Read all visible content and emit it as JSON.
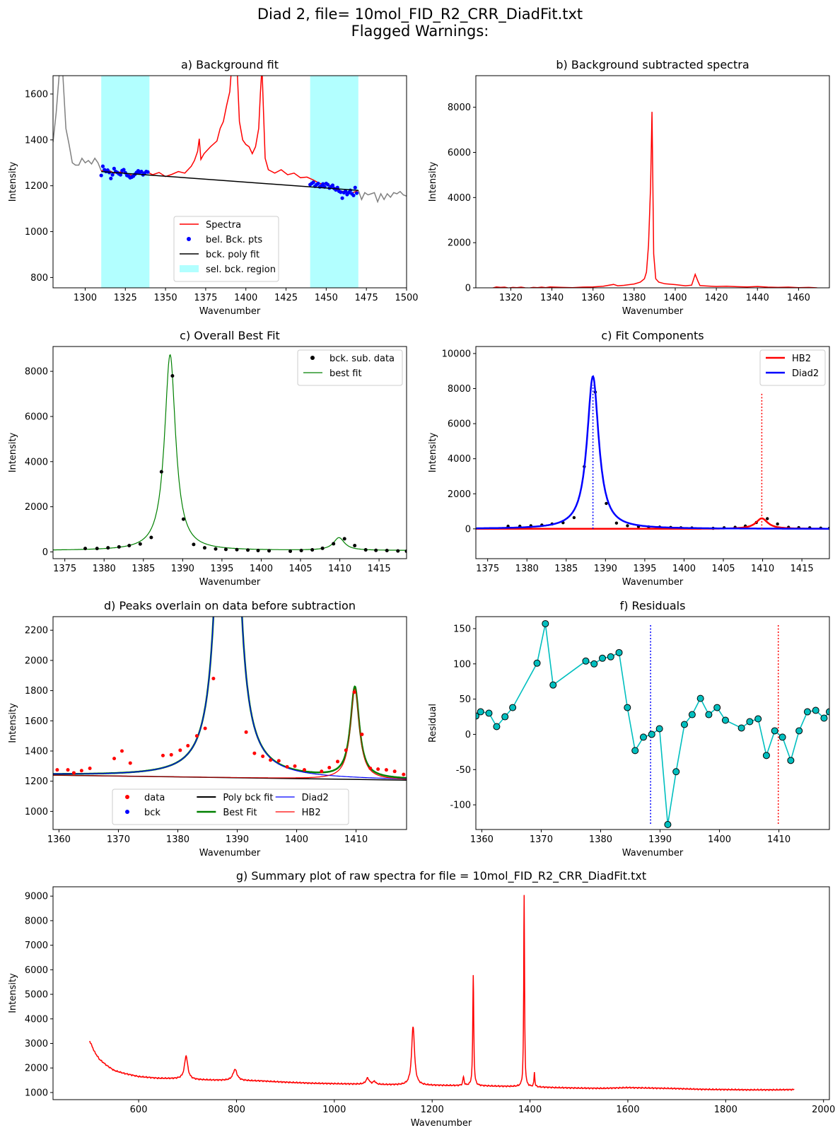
{
  "suptitle": {
    "line1": "Diad 2, file= 10mol_FID_R2_CRR_DiadFit.txt",
    "line2": "Flagged Warnings:"
  },
  "colors": {
    "spectra": "#ff0000",
    "bck_pts": "#0000ff",
    "poly": "#000000",
    "bck_region": "#00ffff",
    "best_fit_c": "#008000",
    "hb2": "#ff0000",
    "diad2": "#0000ff",
    "best_fit_d": "#008000",
    "residual_line": "#00bfbf",
    "residual_marker": "#00bfbf",
    "raw_grey": "#808080"
  },
  "chart_data": [
    {
      "id": "a",
      "type": "line",
      "title": "a) Background fit",
      "xlabel": "Wavenumber",
      "ylabel": "Intensity",
      "xlim": [
        1280,
        1500
      ],
      "ylim": [
        755,
        1680
      ],
      "xticks": [
        1300,
        1325,
        1350,
        1375,
        1400,
        1425,
        1450,
        1475,
        1500
      ],
      "yticks": [
        800,
        1000,
        1200,
        1400,
        1600
      ],
      "selected_background_regions": [
        [
          1310,
          1340
        ],
        [
          1440,
          1470
        ]
      ],
      "raw_spectrum": {
        "x": [
          1280,
          1282,
          1284,
          1286,
          1288,
          1290,
          1292,
          1294,
          1296,
          1298,
          1300,
          1302,
          1304,
          1306,
          1308,
          1310,
          1470,
          1472,
          1474,
          1476,
          1478,
          1480,
          1482,
          1484,
          1486,
          1488,
          1490,
          1492,
          1494,
          1496,
          1498,
          1500
        ],
        "y": [
          1390,
          1520,
          1700,
          1700,
          1450,
          1380,
          1300,
          1290,
          1290,
          1320,
          1300,
          1310,
          1295,
          1320,
          1300,
          1265,
          1180,
          1140,
          1170,
          1160,
          1165,
          1170,
          1130,
          1165,
          1140,
          1165,
          1150,
          1170,
          1165,
          1175,
          1160,
          1155
        ]
      },
      "spectra": {
        "x": [
          1310,
          1314,
          1318,
          1322,
          1326,
          1330,
          1334,
          1338,
          1342,
          1346,
          1350,
          1354,
          1358,
          1362,
          1366,
          1368,
          1370,
          1371,
          1372,
          1374,
          1378,
          1382,
          1384,
          1386,
          1388,
          1390,
          1392,
          1394,
          1396,
          1398,
          1400,
          1402,
          1404,
          1406,
          1408,
          1409,
          1410,
          1411,
          1412,
          1414,
          1418,
          1422,
          1426,
          1430,
          1434,
          1438,
          1442,
          1446,
          1450,
          1454,
          1458,
          1462,
          1466,
          1470
        ],
        "y": [
          1265,
          1270,
          1255,
          1260,
          1250,
          1245,
          1255,
          1262,
          1248,
          1258,
          1240,
          1250,
          1262,
          1255,
          1285,
          1310,
          1350,
          1405,
          1315,
          1340,
          1370,
          1395,
          1450,
          1480,
          1550,
          1610,
          1800,
          1800,
          1480,
          1400,
          1380,
          1370,
          1340,
          1370,
          1450,
          1600,
          1720,
          1520,
          1320,
          1270,
          1255,
          1270,
          1248,
          1255,
          1235,
          1238,
          1225,
          1210,
          1205,
          1198,
          1180,
          1172,
          1168,
          1180
        ]
      },
      "bck_points": {
        "x": [
          1310,
          1311,
          1312,
          1313,
          1314,
          1315,
          1316,
          1317,
          1318,
          1319,
          1320,
          1321,
          1322,
          1323,
          1324,
          1325,
          1326,
          1327,
          1328,
          1329,
          1330,
          1331,
          1332,
          1333,
          1334,
          1335,
          1336,
          1337,
          1338,
          1339,
          1440,
          1441,
          1442,
          1443,
          1444,
          1445,
          1446,
          1447,
          1448,
          1449,
          1450,
          1451,
          1452,
          1453,
          1454,
          1455,
          1456,
          1457,
          1458,
          1459,
          1460,
          1461,
          1462,
          1463,
          1464,
          1465,
          1466,
          1467,
          1468,
          1469
        ],
        "y": [
          1245,
          1285,
          1270,
          1262,
          1268,
          1258,
          1232,
          1248,
          1275,
          1262,
          1258,
          1252,
          1248,
          1266,
          1270,
          1257,
          1245,
          1242,
          1235,
          1238,
          1242,
          1250,
          1258,
          1265,
          1258,
          1262,
          1248,
          1255,
          1262,
          1260,
          1205,
          1210,
          1215,
          1198,
          1205,
          1210,
          1195,
          1200,
          1208,
          1195,
          1210,
          1205,
          1190,
          1196,
          1202,
          1188,
          1182,
          1192,
          1176,
          1172,
          1146,
          1170,
          1176,
          1162,
          1170,
          1180,
          1165,
          1158,
          1192,
          1168
        ]
      },
      "poly_fit": {
        "x": [
          1310,
          1470
        ],
        "y": [
          1262,
          1180
        ]
      },
      "legend": {
        "location": "lower center",
        "entries": [
          "Spectra",
          "bel. Bck. pts",
          "bck. poly fit",
          "sel. bck. region"
        ]
      }
    },
    {
      "id": "b",
      "type": "line",
      "title": "b) Background subtracted spectra",
      "xlabel": "Wavenumber",
      "ylabel": "Intensity",
      "xlim": [
        1303,
        1475
      ],
      "ylim": [
        0,
        9400
      ],
      "xticks": [
        1320,
        1340,
        1360,
        1380,
        1400,
        1420,
        1440,
        1460
      ],
      "yticks": [
        0,
        2000,
        4000,
        6000,
        8000
      ],
      "series": [
        {
          "x": [
            1311,
            1313,
            1315,
            1317,
            1319,
            1321,
            1323,
            1325,
            1327,
            1329,
            1331,
            1333,
            1335,
            1337,
            1339,
            1345,
            1350,
            1355,
            1360,
            1365,
            1370,
            1372,
            1375,
            1380,
            1383,
            1385,
            1386,
            1387,
            1388,
            1388.7,
            1389.5,
            1390.5,
            1392,
            1395,
            1400,
            1405,
            1408,
            1409.7,
            1411,
            1412,
            1415,
            1420,
            1425,
            1430,
            1435,
            1440,
            1445,
            1450,
            1455,
            1460,
            1465,
            1469
          ],
          "y": [
            -10,
            40,
            20,
            30,
            -10,
            20,
            10,
            30,
            0,
            -10,
            20,
            10,
            30,
            10,
            40,
            20,
            10,
            30,
            40,
            70,
            150,
            90,
            110,
            170,
            250,
            400,
            700,
            1900,
            4500,
            7800,
            1500,
            400,
            250,
            180,
            140,
            90,
            120,
            600,
            300,
            100,
            80,
            60,
            70,
            50,
            40,
            60,
            30,
            20,
            30,
            10,
            20,
            0
          ]
        }
      ]
    },
    {
      "id": "c1",
      "type": "line",
      "title": "c) Overall Best Fit",
      "xlabel": "Wavenumber",
      "ylabel": "Intensity",
      "xlim": [
        1373.5,
        1418.5
      ],
      "ylim": [
        -300,
        9100
      ],
      "xticks": [
        1375,
        1380,
        1385,
        1390,
        1395,
        1400,
        1405,
        1410,
        1415
      ],
      "yticks": [
        0,
        2000,
        4000,
        6000,
        8000
      ],
      "bck_sub_data": {
        "x": [
          1377.6,
          1379.1,
          1380.5,
          1381.9,
          1383.2,
          1384.6,
          1386.0,
          1387.3,
          1388.7,
          1390.1,
          1391.4,
          1392.8,
          1394.2,
          1395.5,
          1396.9,
          1398.3,
          1399.6,
          1401.0,
          1403.7,
          1405.1,
          1406.5,
          1407.8,
          1409.2,
          1410.6,
          1411.9,
          1413.3,
          1414.6,
          1416.0,
          1417.4,
          1418.5
        ],
        "y": [
          150,
          150,
          180,
          220,
          280,
          350,
          640,
          3550,
          7800,
          1450,
          330,
          180,
          130,
          110,
          100,
          80,
          60,
          50,
          30,
          60,
          90,
          160,
          360,
          580,
          280,
          90,
          70,
          60,
          40,
          30
        ]
      },
      "best_fit_peaks": [
        {
          "center": 1388.4,
          "amplitude": 8680,
          "hwhm": 0.85
        },
        {
          "center": 1409.9,
          "amplitude": 560,
          "hwhm": 0.85
        }
      ],
      "best_fit_baseline": 60,
      "legend": {
        "location": "top-right",
        "entries": [
          "bck. sub. data",
          "best fit"
        ]
      }
    },
    {
      "id": "c2",
      "type": "line",
      "title": "c) Fit Components",
      "xlabel": "Wavenumber",
      "ylabel": "Intensity",
      "xlim": [
        1373.5,
        1418.5
      ],
      "ylim": [
        -1700,
        10400
      ],
      "xticks": [
        1375,
        1380,
        1385,
        1390,
        1395,
        1400,
        1405,
        1410,
        1415
      ],
      "yticks": [
        0,
        2000,
        4000,
        6000,
        8000,
        10000
      ],
      "components": [
        {
          "name": "HB2",
          "center": 1409.9,
          "amplitude": 600,
          "hwhm": 0.9
        },
        {
          "name": "Diad2",
          "center": 1388.4,
          "amplitude": 8700,
          "hwhm": 0.9
        }
      ],
      "peak_markers": [
        {
          "x": 1388.4,
          "y0": 0,
          "y1": 8200,
          "color": "blue"
        },
        {
          "x": 1409.9,
          "y0": 0,
          "y1": 7800,
          "color": "red"
        }
      ],
      "legend": {
        "location": "top-right",
        "entries": [
          "HB2",
          "Diad2"
        ]
      }
    },
    {
      "id": "d",
      "type": "line",
      "title": "d) Peaks overlain on data before subtraction",
      "xlabel": "Wavenumber",
      "ylabel": "Intensity",
      "xlim": [
        1359,
        1418.5
      ],
      "ylim": [
        880,
        2290
      ],
      "xticks": [
        1360,
        1370,
        1380,
        1390,
        1400,
        1410
      ],
      "yticks": [
        1000,
        1200,
        1400,
        1600,
        1800,
        2000,
        2200
      ],
      "data": {
        "x": [
          1359.7,
          1361.5,
          1362.5,
          1363.8,
          1365.2,
          1369.3,
          1370.6,
          1372.0,
          1377.5,
          1378.9,
          1380.4,
          1381.7,
          1383.2,
          1384.6,
          1386.0,
          1391.5,
          1392.9,
          1394.3,
          1395.6,
          1397.0,
          1398.4,
          1399.7,
          1401.3,
          1404.2,
          1405.5,
          1406.9,
          1408.3,
          1409.7,
          1411.0,
          1412.4,
          1413.7,
          1415.1,
          1416.5,
          1418.0
        ],
        "y": [
          1275,
          1275,
          1255,
          1270,
          1285,
          1350,
          1400,
          1320,
          1370,
          1375,
          1405,
          1435,
          1500,
          1550,
          1880,
          1525,
          1385,
          1365,
          1340,
          1335,
          1295,
          1300,
          1275,
          1265,
          1290,
          1330,
          1405,
          1790,
          1510,
          1285,
          1280,
          1275,
          1265,
          1245
        ]
      },
      "poly_bck": {
        "x": [
          1359,
          1418.5
        ],
        "y": [
          1240,
          1207
        ]
      },
      "best_fit": [
        {
          "name": "Diad2",
          "center": 1388.4,
          "amplitude": 8700,
          "hwhm": 0.9
        },
        {
          "name": "HB2",
          "center": 1409.8,
          "amplitude": 600,
          "hwhm": 0.9
        }
      ],
      "legend": {
        "location": "lower center",
        "entries": [
          "data",
          "bck",
          "Poly bck fit",
          "Best Fit",
          "Diad2",
          "HB2"
        ]
      }
    },
    {
      "id": "f",
      "type": "line",
      "title": "f) Residuals",
      "xlabel": "Wavenumber",
      "ylabel": "Residual",
      "xlim": [
        1359,
        1418.5
      ],
      "ylim": [
        -135,
        167
      ],
      "xticks": [
        1360,
        1370,
        1380,
        1390,
        1400,
        1410
      ],
      "yticks": [
        -100,
        -50,
        0,
        50,
        100,
        150
      ],
      "residuals": {
        "x": [
          1359.0,
          1359.8,
          1361.2,
          1362.5,
          1363.9,
          1365.2,
          1369.3,
          1370.7,
          1372.0,
          1377.5,
          1378.9,
          1380.3,
          1381.7,
          1383.1,
          1384.5,
          1385.8,
          1387.2,
          1388.6,
          1389.9,
          1391.3,
          1392.7,
          1394.1,
          1395.4,
          1396.8,
          1398.2,
          1399.6,
          1401.0,
          1403.7,
          1405.1,
          1406.5,
          1407.9,
          1409.3,
          1410.6,
          1412.0,
          1413.4,
          1414.8,
          1416.2,
          1417.6,
          1418.5
        ],
        "y": [
          26,
          32,
          30,
          11,
          25,
          38,
          101,
          157,
          70,
          104,
          100,
          108,
          110,
          116,
          38,
          -23,
          -4,
          0,
          8,
          -128,
          -53,
          14,
          28,
          51,
          28,
          38,
          20,
          9,
          18,
          22,
          -30,
          5,
          -4,
          -37,
          5,
          32,
          34,
          23,
          32
        ]
      },
      "peak_markers": [
        {
          "x": 1388.4,
          "y0": -127,
          "y1": 155,
          "color": "blue"
        },
        {
          "x": 1409.9,
          "y0": -127,
          "y1": 155,
          "color": "red"
        }
      ]
    },
    {
      "id": "g",
      "type": "line",
      "title": "g) Summary plot of raw spectra for file = 10mol_FID_R2_CRR_DiadFit.txt",
      "xlabel": "Wavenumber",
      "ylabel": "Intensity",
      "xlim": [
        425,
        2012
      ],
      "ylim": [
        710,
        9380
      ],
      "xticks": [
        600,
        800,
        1000,
        1200,
        1400,
        1600,
        1800,
        2000
      ],
      "yticks": [
        1000,
        2000,
        3000,
        4000,
        5000,
        6000,
        7000,
        8000,
        9000
      ],
      "baseline": {
        "x": [
          500,
          510,
          520,
          535,
          550,
          570,
          600,
          640,
          680,
          720,
          760,
          800,
          850,
          900,
          950,
          1000,
          1050,
          1100,
          1150,
          1200,
          1250,
          1300,
          1350,
          1400,
          1450,
          1500,
          1550,
          1600,
          1650,
          1700,
          1750,
          1800,
          1850,
          1900,
          1940
        ],
        "y": [
          3100,
          2650,
          2350,
          2100,
          1900,
          1780,
          1650,
          1580,
          1560,
          1520,
          1500,
          1490,
          1470,
          1420,
          1380,
          1360,
          1340,
          1320,
          1300,
          1290,
          1280,
          1270,
          1250,
          1230,
          1200,
          1180,
          1170,
          1200,
          1180,
          1160,
          1130,
          1120,
          1110,
          1110,
          1120
        ]
      },
      "peaks": [
        {
          "center": 697,
          "amplitude": 950,
          "hwhm": 4
        },
        {
          "center": 797,
          "amplitude": 450,
          "hwhm": 5
        },
        {
          "center": 1068,
          "amplitude": 250,
          "hwhm": 4
        },
        {
          "center": 1082,
          "amplitude": 120,
          "hwhm": 3
        },
        {
          "center": 1161,
          "amplitude": 2400,
          "hwhm": 3.5
        },
        {
          "center": 1264,
          "amplitude": 350,
          "hwhm": 1.5
        },
        {
          "center": 1284,
          "amplitude": 4500,
          "hwhm": 1.2
        },
        {
          "center": 1388,
          "amplitude": 7800,
          "hwhm": 1.0
        },
        {
          "center": 1409,
          "amplitude": 600,
          "hwhm": 1.0
        }
      ]
    }
  ]
}
